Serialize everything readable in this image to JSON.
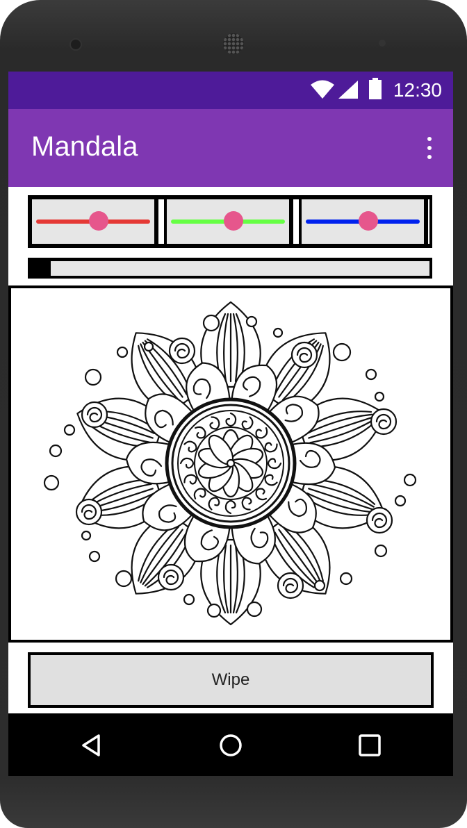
{
  "status_bar": {
    "time": "12:30",
    "icons": [
      "wifi-icon",
      "signal-icon",
      "battery-icon"
    ]
  },
  "app_bar": {
    "title": "Mandala",
    "menu_icon": "more-vert-icon"
  },
  "sliders": [
    {
      "name": "red",
      "color": "#e53935",
      "value": 0.55
    },
    {
      "name": "green",
      "color": "#66ff44",
      "value": 0.55
    },
    {
      "name": "blue",
      "color": "#0022ee",
      "value": 0.55
    }
  ],
  "thumb_color": "#e6568c",
  "progress": {
    "value": 0.05
  },
  "canvas": {
    "image": "mandala-drawing"
  },
  "wipe_button": {
    "label": "Wipe"
  },
  "nav_bar": {
    "icons": [
      "back-icon",
      "home-icon",
      "recents-icon"
    ]
  }
}
